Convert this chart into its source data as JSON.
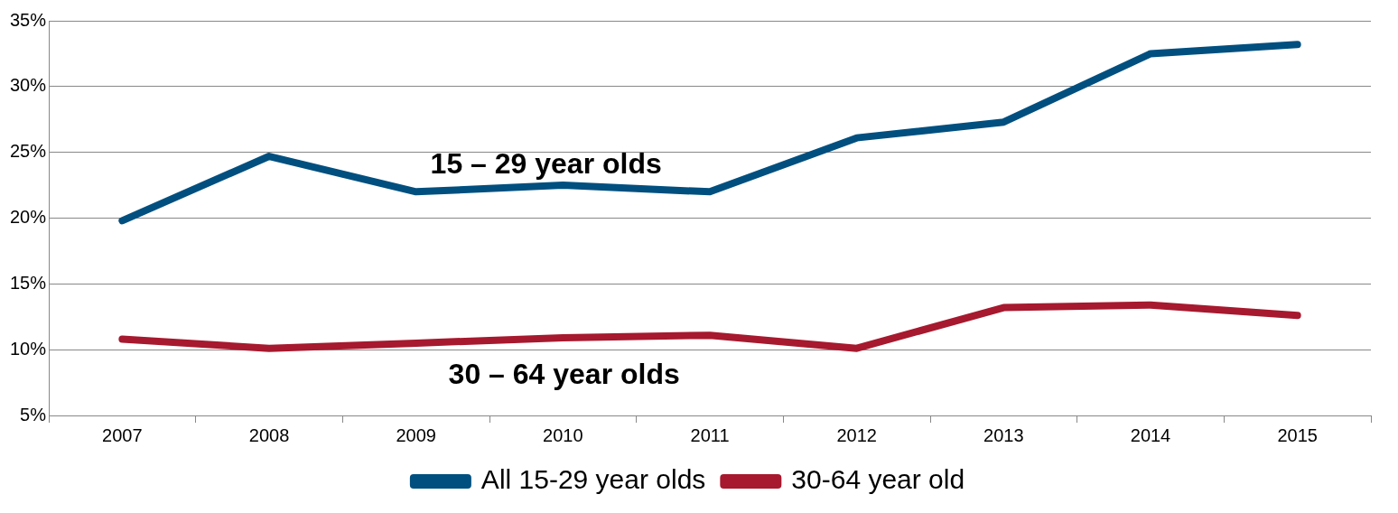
{
  "chart_data": {
    "type": "line",
    "categories": [
      "2007",
      "2008",
      "2009",
      "2010",
      "2011",
      "2012",
      "2013",
      "2014",
      "2015"
    ],
    "series": [
      {
        "name": "All 15-29 year olds",
        "color": "#004f7f",
        "values": [
          19.8,
          24.7,
          22.0,
          22.5,
          22.0,
          26.1,
          27.3,
          32.5,
          33.2
        ]
      },
      {
        "name": "30-64 year old",
        "color": "#a6192e",
        "values": [
          10.8,
          10.1,
          10.5,
          10.9,
          11.1,
          10.1,
          13.2,
          13.4,
          12.6
        ]
      }
    ],
    "ylim": [
      5,
      35
    ],
    "yticks": [
      {
        "value": 5,
        "label": "5%"
      },
      {
        "value": 10,
        "label": "10%"
      },
      {
        "value": 15,
        "label": "15%"
      },
      {
        "value": 20,
        "label": "20%"
      },
      {
        "value": 25,
        "label": "25%"
      },
      {
        "value": 30,
        "label": "30%"
      },
      {
        "value": 35,
        "label": "35%"
      }
    ],
    "grid": "y",
    "legend": "bottom",
    "marker": "none",
    "line_style": "solid",
    "annotations": [
      "15 – 29 year olds",
      "30 – 64 year olds"
    ]
  }
}
